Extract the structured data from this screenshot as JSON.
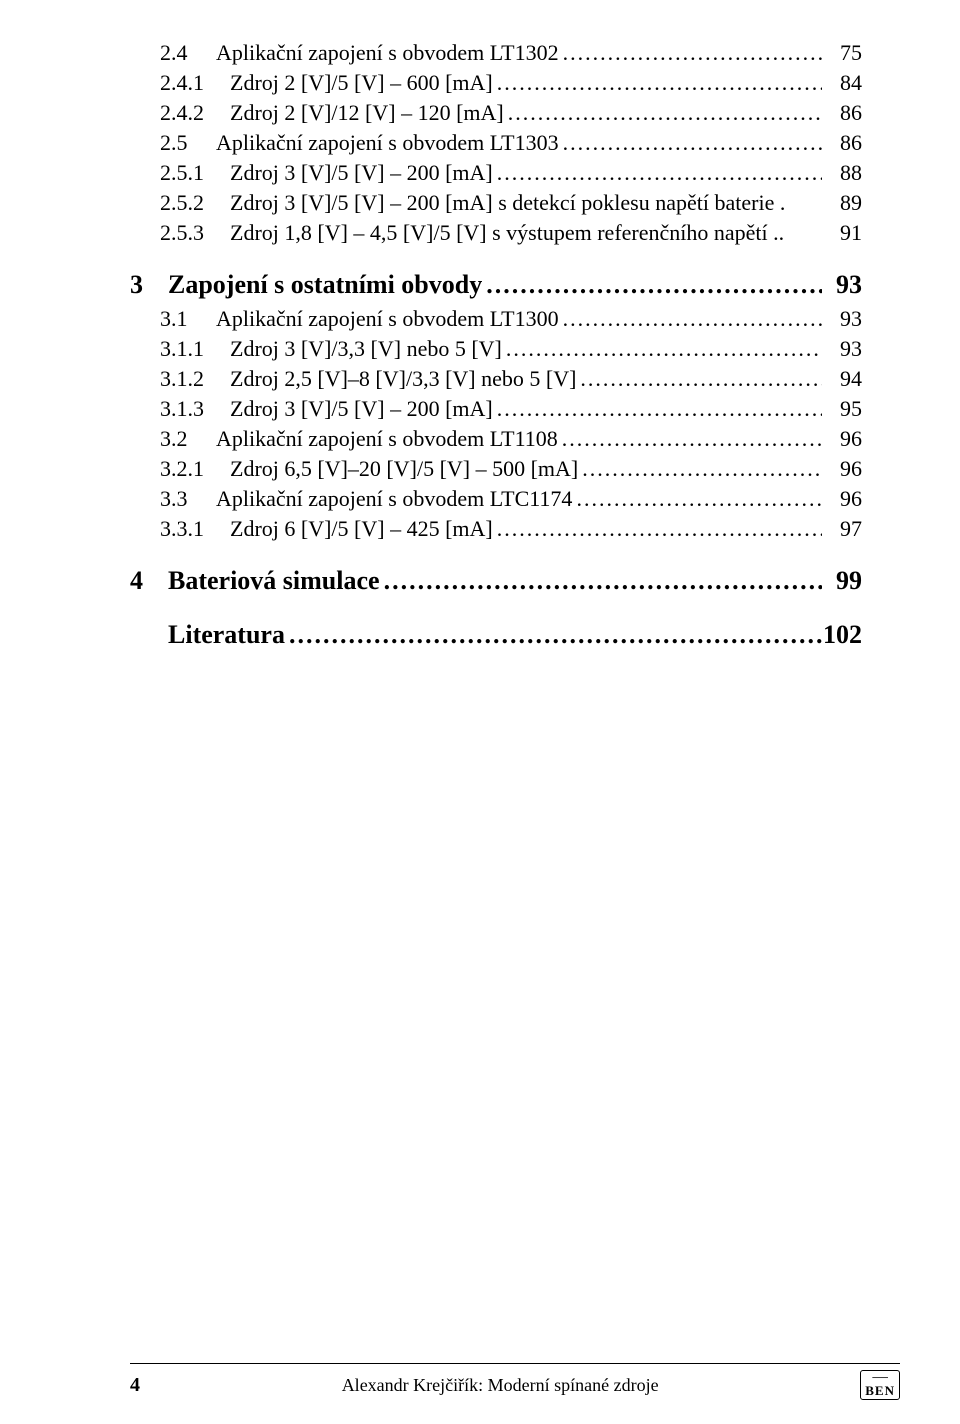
{
  "toc": [
    {
      "level": 2,
      "num": "2.4",
      "label": "Aplikační zapojení s obvodem LT1302",
      "page": "75",
      "noDots": false
    },
    {
      "level": 3,
      "num": "2.4.1",
      "label": "Zdroj 2 [V]/5 [V] – 600 [mA]",
      "page": "84",
      "noDots": false
    },
    {
      "level": 3,
      "num": "2.4.2",
      "label": "Zdroj 2 [V]/12 [V] – 120 [mA]",
      "page": "86",
      "noDots": false
    },
    {
      "level": 2,
      "num": "2.5",
      "label": "Aplikační zapojení s obvodem LT1303",
      "page": "86",
      "noDots": false
    },
    {
      "level": 3,
      "num": "2.5.1",
      "label": "Zdroj 3 [V]/5 [V] – 200 [mA]",
      "page": "88",
      "noDots": false
    },
    {
      "level": 3,
      "num": "2.5.2",
      "label": "Zdroj 3 [V]/5 [V] – 200 [mA] s detekcí poklesu napětí baterie .",
      "page": "89",
      "noDots": true
    },
    {
      "level": 3,
      "num": "2.5.3",
      "label": "Zdroj 1,8 [V] – 4,5 [V]/5 [V] s výstupem referenčního napětí ..",
      "page": "91",
      "noDots": true
    },
    {
      "level": 1,
      "num": "3",
      "label": "Zapojení s ostatními obvody",
      "page": "93",
      "noDots": false
    },
    {
      "level": 2,
      "num": "3.1",
      "label": "Aplikační zapojení s obvodem LT1300",
      "page": "93",
      "noDots": false
    },
    {
      "level": 3,
      "num": "3.1.1",
      "label": "Zdroj 3 [V]/3,3 [V] nebo 5 [V]",
      "page": "93",
      "noDots": false
    },
    {
      "level": 3,
      "num": "3.1.2",
      "label": "Zdroj 2,5 [V]–8 [V]/3,3 [V] nebo 5 [V]",
      "page": "94",
      "noDots": false
    },
    {
      "level": 3,
      "num": "3.1.3",
      "label": "Zdroj 3 [V]/5 [V] – 200 [mA]",
      "page": "95",
      "noDots": false
    },
    {
      "level": 2,
      "num": "3.2",
      "label": "Aplikační zapojení s obvodem LT1108",
      "page": "96",
      "noDots": false
    },
    {
      "level": 3,
      "num": "3.2.1",
      "label": "Zdroj 6,5 [V]–20 [V]/5 [V] – 500 [mA]",
      "page": "96",
      "noDots": false
    },
    {
      "level": 2,
      "num": "3.3",
      "label": "Aplikační zapojení s obvodem LTC1174",
      "page": "96",
      "noDots": false
    },
    {
      "level": 3,
      "num": "3.3.1",
      "label": "Zdroj 6 [V]/5 [V] – 425 [mA]",
      "page": "97",
      "noDots": false
    },
    {
      "level": 1,
      "num": "4",
      "label": "Bateriová simulace",
      "page": "99",
      "noDots": false
    },
    {
      "level": 1,
      "num": "",
      "label": "Literatura",
      "page": "102",
      "noDots": false
    }
  ],
  "footer": {
    "pageNumber": "4",
    "centerText": "Alexandr Krejčiřík: Moderní spínané zdroje",
    "logoBrand": "BEN"
  },
  "colors": {
    "text": "#000000",
    "background": "#ffffff"
  },
  "typography": {
    "titleFontSizePt": 20,
    "bodyFontSizePt": 16,
    "footerFontSizePt": 13,
    "fontFamily": "Times New Roman"
  }
}
